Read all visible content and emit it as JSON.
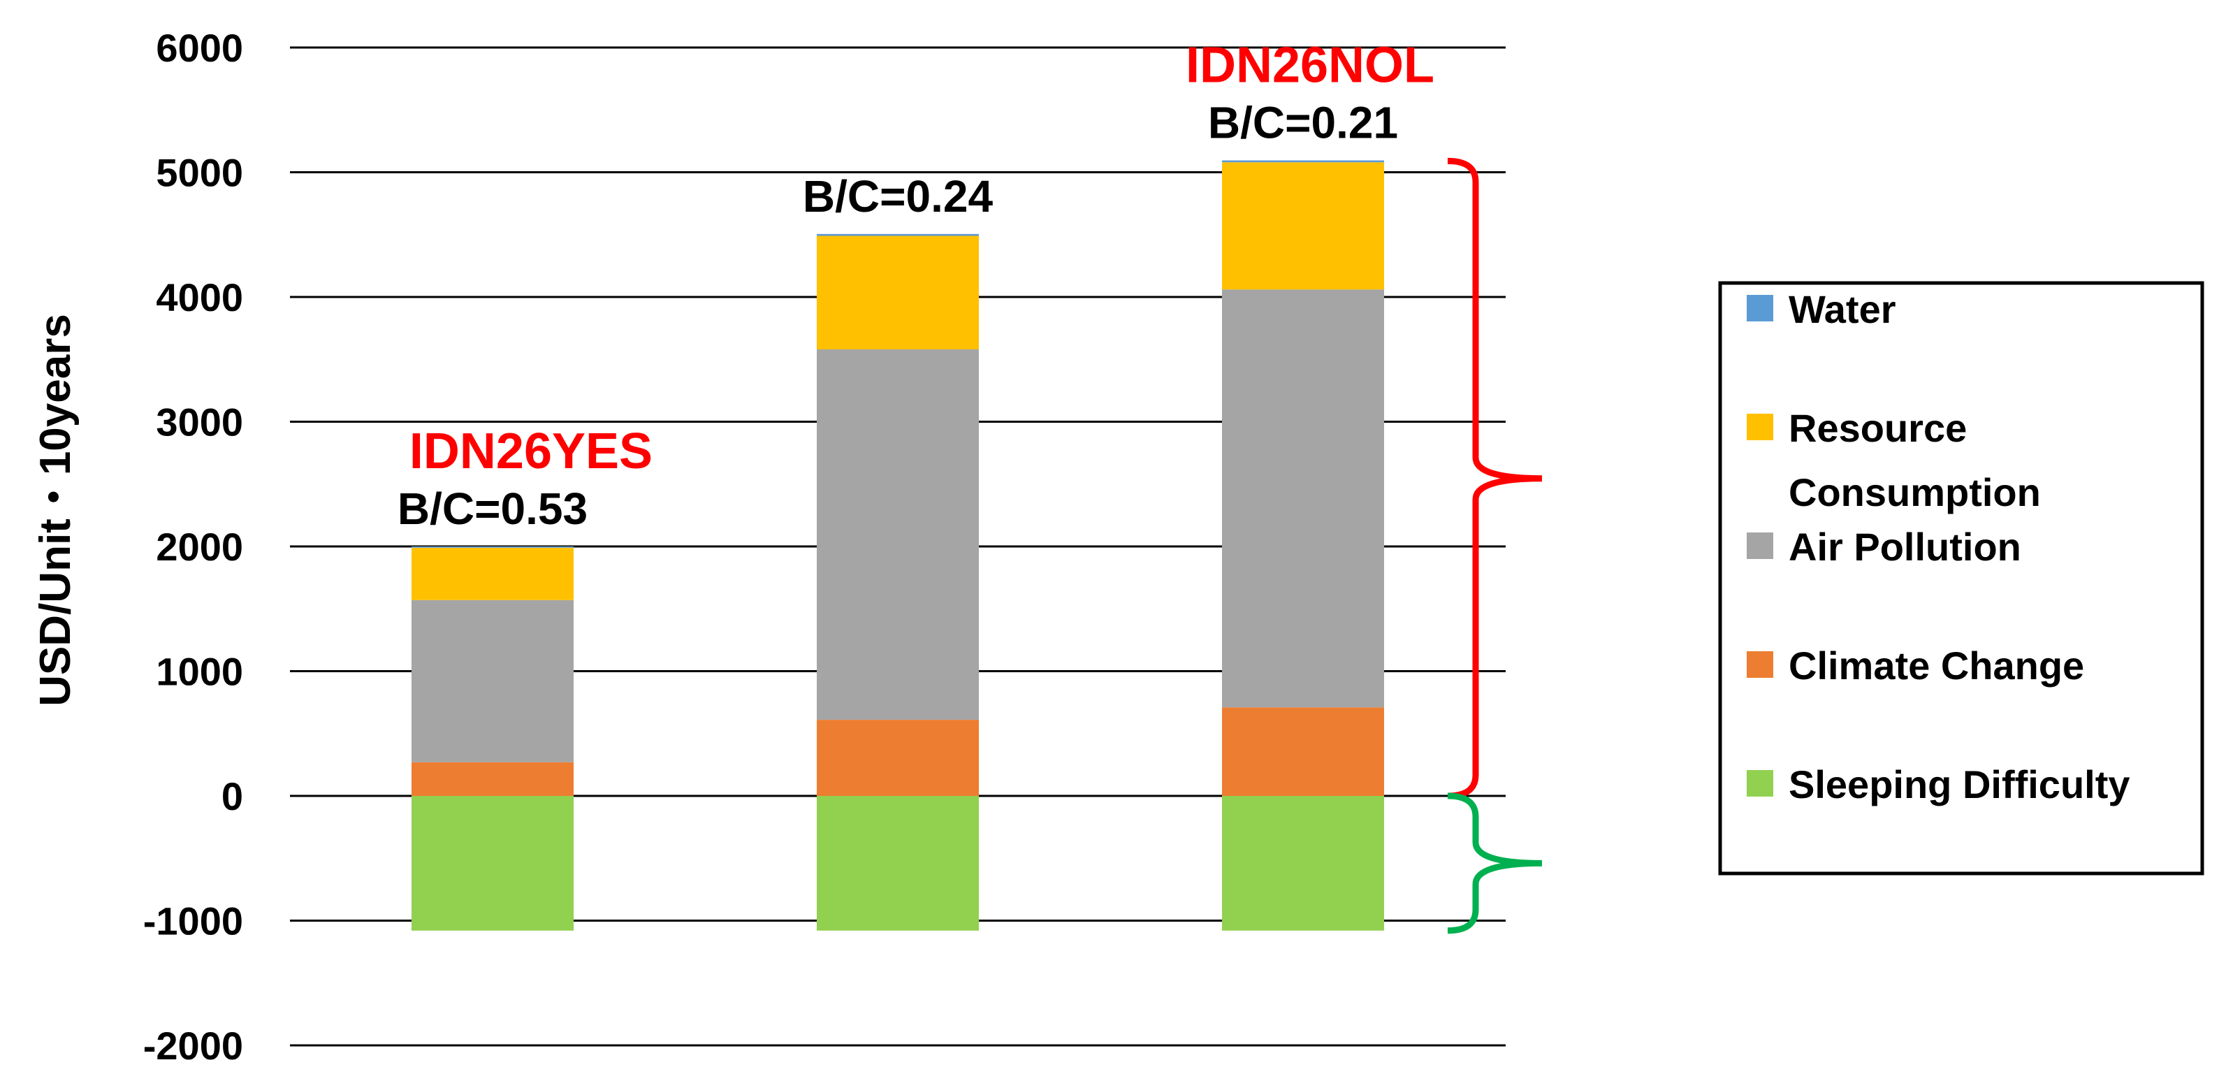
{
  "chart_data": {
    "type": "bar",
    "stacked": true,
    "ylabel": "USD/Unit・10years",
    "ylim": [
      -2000,
      6000
    ],
    "yticks": [
      6000,
      5000,
      4000,
      3000,
      2000,
      1000,
      0,
      -1000,
      -2000
    ],
    "grid": true,
    "legend_position": "right",
    "categories": [
      "",
      "",
      ""
    ],
    "bar_labels": [
      {
        "bc": "B/C=0.53",
        "name": "IDN26YES"
      },
      {
        "bc": "B/C=0.24",
        "name": ""
      },
      {
        "bc": "B/C=0.21",
        "name": "IDN26NOL"
      }
    ],
    "series": [
      {
        "name": "Sleeping Difficulty",
        "color": "#92d050",
        "values": [
          -1080,
          -1080,
          -1080
        ]
      },
      {
        "name": "Climate Change",
        "color": "#ed7d31",
        "values": [
          270,
          610,
          710
        ]
      },
      {
        "name": "Air Pollution",
        "color": "#a5a5a5",
        "values": [
          1300,
          2970,
          3350
        ]
      },
      {
        "name": "Resource Consumption",
        "color": "#ffc000",
        "values": [
          420,
          910,
          1020
        ]
      },
      {
        "name": "Water",
        "color": "#5b9bd5",
        "values": [
          10,
          15,
          15
        ]
      }
    ],
    "legend_order": [
      "Water",
      "Resource Consumption",
      "Air Pollution",
      "Climate Change",
      "Sleeping Difficulty"
    ],
    "brackets": [
      {
        "from": 0,
        "to": 5090,
        "color": "#ff0000"
      },
      {
        "from": -1080,
        "to": 0,
        "color": "#00b050"
      }
    ]
  }
}
